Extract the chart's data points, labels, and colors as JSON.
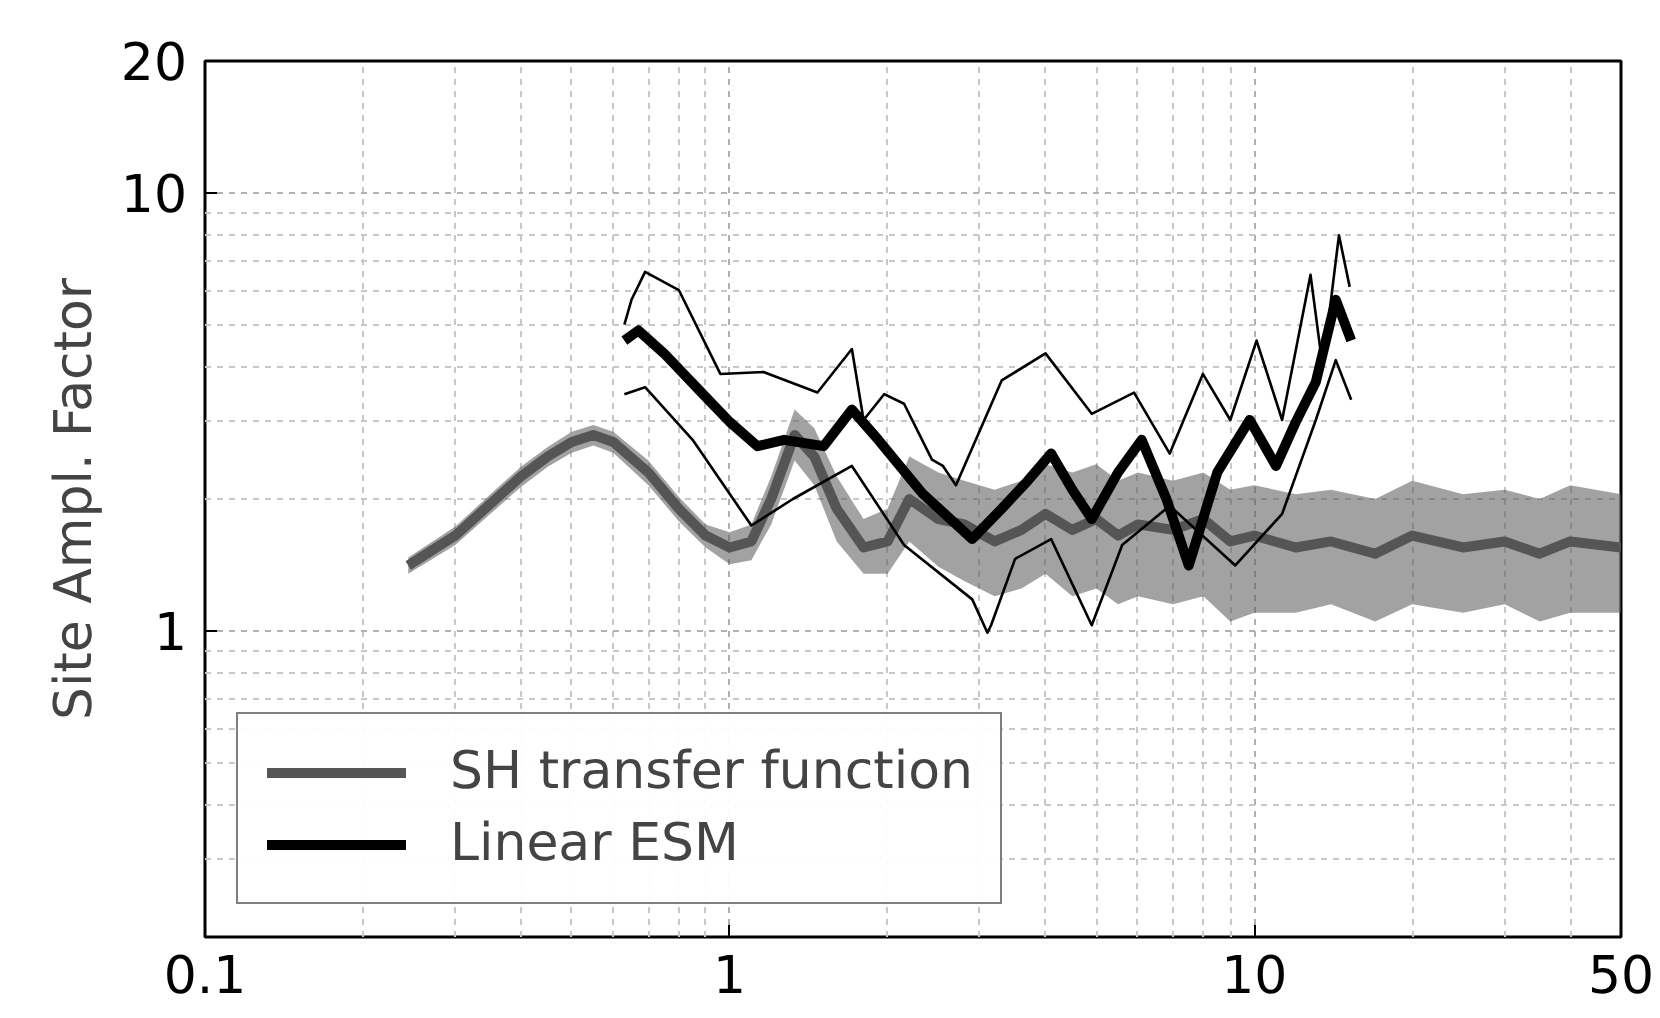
{
  "chart_data": {
    "type": "line",
    "ylabel": "Site Ampl. Factor",
    "log": "xy",
    "grid": true,
    "legend": "bottom left",
    "xlim": [
      0.1,
      50
    ],
    "xticks": [
      0.1,
      1,
      10,
      50
    ],
    "ylim": [
      0.2,
      20
    ],
    "yticks": [
      1,
      10,
      20
    ],
    "series": [
      {
        "name": "SH transfer function",
        "color": "#555555",
        "x": [
          0.244,
          0.3,
          0.35,
          0.4,
          0.45,
          0.5,
          0.55,
          0.6,
          0.7,
          0.8,
          0.9,
          1.0,
          1.1,
          1.2,
          1.33,
          1.45,
          1.6,
          1.8,
          2.0,
          2.2,
          2.5,
          2.8,
          3.2,
          3.6,
          4,
          4.5,
          5,
          5.5,
          6,
          7,
          8,
          9,
          10,
          12,
          14,
          17,
          20,
          25,
          30,
          35,
          40,
          50
        ],
        "values": [
          1.41,
          1.65,
          1.95,
          2.25,
          2.5,
          2.7,
          2.8,
          2.7,
          2.3,
          1.9,
          1.65,
          1.55,
          1.6,
          2.0,
          2.8,
          2.5,
          1.9,
          1.55,
          1.6,
          2.0,
          1.8,
          1.75,
          1.6,
          1.7,
          1.85,
          1.7,
          1.8,
          1.65,
          1.75,
          1.7,
          1.8,
          1.6,
          1.65,
          1.55,
          1.6,
          1.5,
          1.65,
          1.55,
          1.6,
          1.5,
          1.6,
          1.55
        ],
        "lower": [
          1.35,
          1.57,
          1.85,
          2.13,
          2.37,
          2.55,
          2.65,
          2.55,
          2.15,
          1.78,
          1.55,
          1.42,
          1.45,
          1.75,
          2.45,
          2.15,
          1.6,
          1.35,
          1.35,
          1.6,
          1.4,
          1.3,
          1.2,
          1.25,
          1.35,
          1.2,
          1.25,
          1.15,
          1.2,
          1.15,
          1.2,
          1.05,
          1.1,
          1.1,
          1.15,
          1.05,
          1.15,
          1.1,
          1.15,
          1.05,
          1.1,
          1.1
        ],
        "upper": [
          1.47,
          1.73,
          2.05,
          2.37,
          2.63,
          2.85,
          2.95,
          2.85,
          2.45,
          2.02,
          1.75,
          1.68,
          1.75,
          2.25,
          3.2,
          2.9,
          2.25,
          1.8,
          1.9,
          2.5,
          2.3,
          2.2,
          2.1,
          2.2,
          2.4,
          2.3,
          2.4,
          2.2,
          2.3,
          2.2,
          2.3,
          2.1,
          2.15,
          2.05,
          2.1,
          2.0,
          2.2,
          2.05,
          2.1,
          2.0,
          2.15,
          2.05
        ]
      },
      {
        "name": "Linear ESM",
        "color": "#000000",
        "x": [
          0.63,
          0.67,
          0.75,
          0.89,
          1.0,
          1.13,
          1.27,
          1.51,
          1.71,
          1.92,
          2.33,
          2.9,
          3.3,
          3.7,
          4.1,
          4.5,
          4.9,
          5.5,
          6.1,
          6.8,
          7.5,
          8.5,
          9.8,
          11.0,
          12,
          13.1,
          14.3,
          15.3
        ],
        "values": [
          4.6,
          4.85,
          4.3,
          3.47,
          3.0,
          2.64,
          2.73,
          2.64,
          3.2,
          2.73,
          2.06,
          1.62,
          1.9,
          2.2,
          2.54,
          2.1,
          1.8,
          2.3,
          2.73,
          2.0,
          1.41,
          2.3,
          3.03,
          2.38,
          3.0,
          3.7,
          5.7,
          4.6
        ]
      },
      {
        "color": "#000000",
        "x": [
          0.63,
          0.65,
          0.69,
          0.8,
          0.96,
          1.16,
          1.47,
          1.71,
          1.8,
          1.97,
          2.15,
          2.43,
          2.55,
          2.7,
          3.3,
          4.0,
          4.9,
          5.9,
          6.9,
          7.98,
          9.0,
          10.1,
          11.3,
          12.8,
          13.5,
          14.5,
          15.2
        ],
        "values": [
          5.0,
          5.7,
          6.6,
          6.0,
          3.86,
          3.9,
          3.5,
          4.4,
          3.03,
          3.47,
          3.3,
          2.46,
          2.38,
          2.15,
          3.73,
          4.3,
          3.13,
          3.5,
          2.54,
          3.86,
          3.03,
          4.6,
          3.03,
          6.5,
          4.0,
          8.0,
          6.1
        ]
      },
      {
        "color": "#000000",
        "x": [
          0.63,
          0.69,
          0.85,
          1.1,
          1.32,
          1.71,
          2.15,
          2.9,
          3.1,
          3.15,
          3.5,
          4.1,
          4.9,
          5.6,
          6.9,
          9.2,
          11.3,
          13.1,
          14.3,
          15.3
        ],
        "values": [
          3.47,
          3.6,
          2.73,
          1.74,
          2.0,
          2.38,
          1.57,
          1.18,
          0.99,
          1.03,
          1.46,
          1.62,
          1.03,
          1.57,
          1.93,
          1.41,
          1.85,
          3.03,
          4.15,
          3.37
        ]
      }
    ]
  }
}
